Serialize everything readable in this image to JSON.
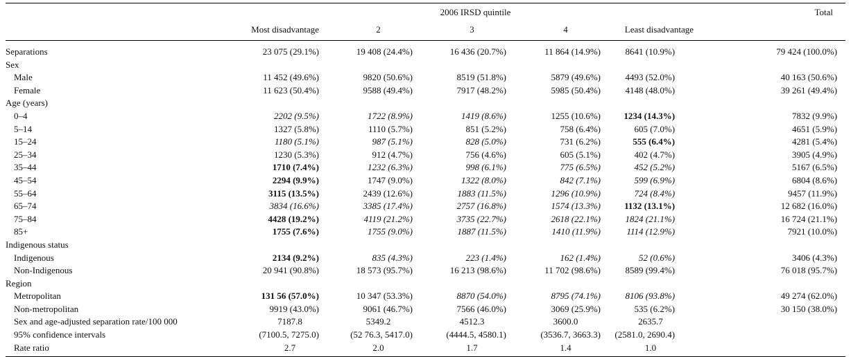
{
  "table": {
    "group_header": "2006 IRSD quintile",
    "total_header": "Total",
    "columns": [
      "Most disadvantage",
      "2",
      "3",
      "4",
      "Least disadvantage",
      ""
    ],
    "rows": [
      {
        "label": "Separations",
        "indent": false,
        "cells": [
          {
            "v": "23 075 (29.1%)",
            "s": ""
          },
          {
            "v": "19 408 (24.4%)",
            "s": ""
          },
          {
            "v": "16 436 (20.7%)",
            "s": ""
          },
          {
            "v": "11 864 (14.9%)",
            "s": ""
          },
          {
            "v": "8641 (10.9%)",
            "s": ""
          },
          {
            "v": "79 424 (100.0%)",
            "s": ""
          }
        ]
      },
      {
        "label": "Sex",
        "indent": false,
        "cells": []
      },
      {
        "label": "Male",
        "indent": true,
        "cells": [
          {
            "v": "11 452 (49.6%)",
            "s": ""
          },
          {
            "v": "9820 (50.6%)",
            "s": ""
          },
          {
            "v": "8519 (51.8%)",
            "s": ""
          },
          {
            "v": "5879 (49.6%)",
            "s": ""
          },
          {
            "v": "4493 (52.0%)",
            "s": ""
          },
          {
            "v": "40 163 (50.6%)",
            "s": ""
          }
        ]
      },
      {
        "label": "Female",
        "indent": true,
        "cells": [
          {
            "v": "11 623 (50.4%)",
            "s": ""
          },
          {
            "v": "9588 (49.4%)",
            "s": ""
          },
          {
            "v": "7917 (48.2%)",
            "s": ""
          },
          {
            "v": "5985 (50.4%)",
            "s": ""
          },
          {
            "v": "4148 (48.0%)",
            "s": ""
          },
          {
            "v": "39 261 (49.4%)",
            "s": ""
          }
        ]
      },
      {
        "label": "Age (years)",
        "indent": false,
        "cells": []
      },
      {
        "label": "0–4",
        "indent": true,
        "cells": [
          {
            "v": "2202 (9.5%)",
            "s": "it"
          },
          {
            "v": "1722 (8.9%)",
            "s": "it"
          },
          {
            "v": "1419 (8.6%)",
            "s": "it"
          },
          {
            "v": "1255 (10.6%)",
            "s": ""
          },
          {
            "v": "1234 (14.3%)",
            "s": "b"
          },
          {
            "v": "7832 (9.9%)",
            "s": ""
          }
        ]
      },
      {
        "label": "5–14",
        "indent": true,
        "cells": [
          {
            "v": "1327 (5.8%)",
            "s": ""
          },
          {
            "v": "1110 (5.7%)",
            "s": ""
          },
          {
            "v": "851 (5.2%)",
            "s": ""
          },
          {
            "v": "758 (6.4%)",
            "s": ""
          },
          {
            "v": "605 (7.0%)",
            "s": ""
          },
          {
            "v": "4651 (5.9%)",
            "s": ""
          }
        ]
      },
      {
        "label": "15–24",
        "indent": true,
        "cells": [
          {
            "v": "1180 (5.1%)",
            "s": "it"
          },
          {
            "v": "987 (5.1%)",
            "s": "it"
          },
          {
            "v": "828 (5.0%)",
            "s": "it"
          },
          {
            "v": "731 (6.2%)",
            "s": ""
          },
          {
            "v": "555 (6.4%)",
            "s": "b"
          },
          {
            "v": "4281 (5.4%)",
            "s": ""
          }
        ]
      },
      {
        "label": "25–34",
        "indent": true,
        "cells": [
          {
            "v": "1230 (5.3%)",
            "s": ""
          },
          {
            "v": "912 (4.7%)",
            "s": ""
          },
          {
            "v": "756 (4.6%)",
            "s": ""
          },
          {
            "v": "605 (5.1%)",
            "s": ""
          },
          {
            "v": "402 (4.7%)",
            "s": ""
          },
          {
            "v": "3905 (4.9%)",
            "s": ""
          }
        ]
      },
      {
        "label": "35–44",
        "indent": true,
        "cells": [
          {
            "v": "1710 (7.4%)",
            "s": "b"
          },
          {
            "v": "1232 (6.3%)",
            "s": "it"
          },
          {
            "v": "998 (6.1%)",
            "s": "it"
          },
          {
            "v": "775 (6.5%)",
            "s": "it"
          },
          {
            "v": "452 (5.2%)",
            "s": "it"
          },
          {
            "v": "5167 (6.5%)",
            "s": ""
          }
        ]
      },
      {
        "label": "45–54",
        "indent": true,
        "cells": [
          {
            "v": "2294 (9.9%)",
            "s": "b"
          },
          {
            "v": "1747 (9.0%)",
            "s": ""
          },
          {
            "v": "1322 (8.0%)",
            "s": "it"
          },
          {
            "v": "842 (7.1%)",
            "s": "it"
          },
          {
            "v": "599 (6.9%)",
            "s": "it"
          },
          {
            "v": "6804 (8.6%)",
            "s": ""
          }
        ]
      },
      {
        "label": "55–64",
        "indent": true,
        "cells": [
          {
            "v": "3115 (13.5%)",
            "s": "b"
          },
          {
            "v": "2439 (12.6%)",
            "s": ""
          },
          {
            "v": "1883 (11.5%)",
            "s": "it"
          },
          {
            "v": "1296 (10.9%)",
            "s": "it"
          },
          {
            "v": "724 (8.4%)",
            "s": "it"
          },
          {
            "v": "9457 (11.9%)",
            "s": ""
          }
        ]
      },
      {
        "label": "65–74",
        "indent": true,
        "cells": [
          {
            "v": "3834 (16.6%)",
            "s": "it"
          },
          {
            "v": "3385 (17.4%)",
            "s": "it"
          },
          {
            "v": "2757 (16.8%)",
            "s": "it"
          },
          {
            "v": "1574 (13.3%)",
            "s": "it"
          },
          {
            "v": "1132 (13.1%)",
            "s": "b"
          },
          {
            "v": "12 682 (16.0%)",
            "s": ""
          }
        ]
      },
      {
        "label": "75–84",
        "indent": true,
        "cells": [
          {
            "v": "4428 (19.2%)",
            "s": "b"
          },
          {
            "v": "4119 (21.2%)",
            "s": "it"
          },
          {
            "v": "3735 (22.7%)",
            "s": "it"
          },
          {
            "v": "2618 (22.1%)",
            "s": "it"
          },
          {
            "v": "1824 (21.1%)",
            "s": "it"
          },
          {
            "v": "16 724 (21.1%)",
            "s": ""
          }
        ]
      },
      {
        "label": "85+",
        "indent": true,
        "cells": [
          {
            "v": "1755 (7.6%)",
            "s": "b"
          },
          {
            "v": "1755 (9.0%)",
            "s": "it"
          },
          {
            "v": "1887 (11.5%)",
            "s": "it"
          },
          {
            "v": "1410 (11.9%)",
            "s": "it"
          },
          {
            "v": "1114 (12.9%)",
            "s": "it"
          },
          {
            "v": "7921 (10.0%)",
            "s": ""
          }
        ]
      },
      {
        "label": "Indigenous status",
        "indent": false,
        "cells": []
      },
      {
        "label": "Indigenous",
        "indent": true,
        "cells": [
          {
            "v": "2134 (9.2%)",
            "s": "b"
          },
          {
            "v": "835 (4.3%)",
            "s": "it"
          },
          {
            "v": "223 (1.4%)",
            "s": "it"
          },
          {
            "v": "162 (1.4%)",
            "s": "it"
          },
          {
            "v": "52 (0.6%)",
            "s": "it"
          },
          {
            "v": "3406 (4.3%)",
            "s": ""
          }
        ]
      },
      {
        "label": "Non-Indigenous",
        "indent": true,
        "cells": [
          {
            "v": "20 941 (90.8%)",
            "s": ""
          },
          {
            "v": "18 573 (95.7%)",
            "s": ""
          },
          {
            "v": "16 213 (98.6%)",
            "s": ""
          },
          {
            "v": "11 702 (98.6%)",
            "s": ""
          },
          {
            "v": "8589 (99.4%)",
            "s": ""
          },
          {
            "v": "76 018 (95.7%)",
            "s": ""
          }
        ]
      },
      {
        "label": "Region",
        "indent": false,
        "cells": []
      },
      {
        "label": "Metropolitan",
        "indent": true,
        "cells": [
          {
            "v": "131 56 (57.0%)",
            "s": "b"
          },
          {
            "v": "10 347 (53.3%)",
            "s": ""
          },
          {
            "v": "8870 (54.0%)",
            "s": "it"
          },
          {
            "v": "8795 (74.1%)",
            "s": "it"
          },
          {
            "v": "8106 (93.8%)",
            "s": "it"
          },
          {
            "v": "49 274 (62.0%)",
            "s": ""
          }
        ]
      },
      {
        "label": "Non-metropolitan",
        "indent": true,
        "cells": [
          {
            "v": "9919 (43.0%)",
            "s": ""
          },
          {
            "v": "9061 (46.7%)",
            "s": ""
          },
          {
            "v": "7566 (46.0%)",
            "s": ""
          },
          {
            "v": "3069 (25.9%)",
            "s": ""
          },
          {
            "v": "535 (6.2%)",
            "s": ""
          },
          {
            "v": "30 150 (38.0%)",
            "s": ""
          }
        ]
      },
      {
        "label": "Sex and age-adjusted separation rate/100 000",
        "indent": true,
        "cells": [
          {
            "v": "7187.8",
            "s": "",
            "c": 1
          },
          {
            "v": "5349.2",
            "s": "",
            "c": 1
          },
          {
            "v": "4512.3",
            "s": "",
            "c": 1
          },
          {
            "v": "3600.0",
            "s": "",
            "c": 1
          },
          {
            "v": "2635.7",
            "s": "",
            "c": 1
          },
          {
            "v": "",
            "s": ""
          }
        ]
      },
      {
        "label": "95% confidence intervals",
        "indent": true,
        "cells": [
          {
            "v": "(7100.5, 7275.0)",
            "s": ""
          },
          {
            "v": "(52 76.3, 5417.0)",
            "s": ""
          },
          {
            "v": "(4444.5, 4580.1)",
            "s": ""
          },
          {
            "v": "(3536.7, 3663.3)",
            "s": ""
          },
          {
            "v": "(2581.0, 2690.4)",
            "s": ""
          },
          {
            "v": "",
            "s": ""
          }
        ]
      },
      {
        "label": "Rate ratio",
        "indent": true,
        "cells": [
          {
            "v": "2.7",
            "s": "",
            "c": 1
          },
          {
            "v": "2.0",
            "s": "",
            "c": 1
          },
          {
            "v": "1.7",
            "s": "",
            "c": 1
          },
          {
            "v": "1.4",
            "s": "",
            "c": 1
          },
          {
            "v": "1.0",
            "s": "",
            "c": 1
          },
          {
            "v": "",
            "s": ""
          }
        ]
      }
    ]
  }
}
